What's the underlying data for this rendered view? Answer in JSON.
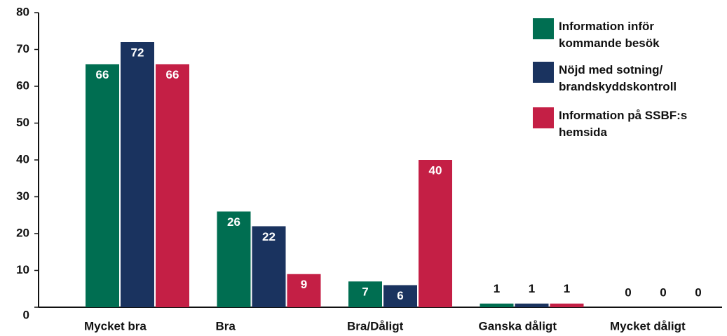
{
  "chart_data": {
    "type": "bar",
    "categories": [
      "Mycket bra",
      "Bra",
      "Bra/Dåligt",
      "Ganska dåligt",
      "Mycket dåligt"
    ],
    "series": [
      {
        "name": "Information inför kommande besök",
        "color": "#006e51",
        "values": [
          66,
          26,
          7,
          1,
          0
        ]
      },
      {
        "name": "Nöjd med sotning/ brandskyddskontroll",
        "color": "#1a335f",
        "values": [
          72,
          22,
          6,
          1,
          0
        ]
      },
      {
        "name": "Information på SSBF:s hemsida",
        "color": "#c41f45",
        "values": [
          66,
          9,
          40,
          1,
          0
        ]
      }
    ],
    "ylim": [
      0,
      80
    ],
    "yticks": [
      0,
      10,
      20,
      30,
      40,
      50,
      60,
      70,
      80
    ],
    "grid": false,
    "legend": "top-right"
  }
}
